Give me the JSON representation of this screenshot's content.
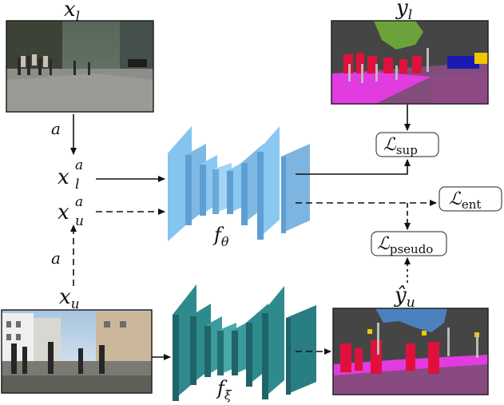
{
  "labels": {
    "x_l": {
      "base": "x",
      "sub": "l"
    },
    "y_l": {
      "base": "y",
      "sub": "l"
    },
    "x_l_a": {
      "base": "x",
      "sup": "a",
      "sub": "l"
    },
    "x_u_a": {
      "base": "x",
      "sup": "a",
      "sub": "u"
    },
    "x_u": {
      "base": "x",
      "sub": "u"
    },
    "y_hat_u": {
      "base": "ŷ",
      "sub": "u"
    },
    "aug_top": "a",
    "aug_bottom": "a",
    "f_theta": {
      "base": "f",
      "sub": "θ"
    },
    "f_xi": {
      "base": "f",
      "sub": "ξ"
    }
  },
  "losses": {
    "sup": {
      "base": "ℒ",
      "sub": "sup"
    },
    "ent": {
      "base": "ℒ",
      "sub": "ent"
    },
    "pseudo": {
      "base": "ℒ",
      "sub": "pseudo"
    }
  },
  "colors": {
    "student_net_front": "#8ac8f2",
    "student_net_side": "#5e9fd3",
    "teacher_net_front": "#2f8a8e",
    "teacher_net_side": "#1e6468",
    "line": "#111111"
  }
}
